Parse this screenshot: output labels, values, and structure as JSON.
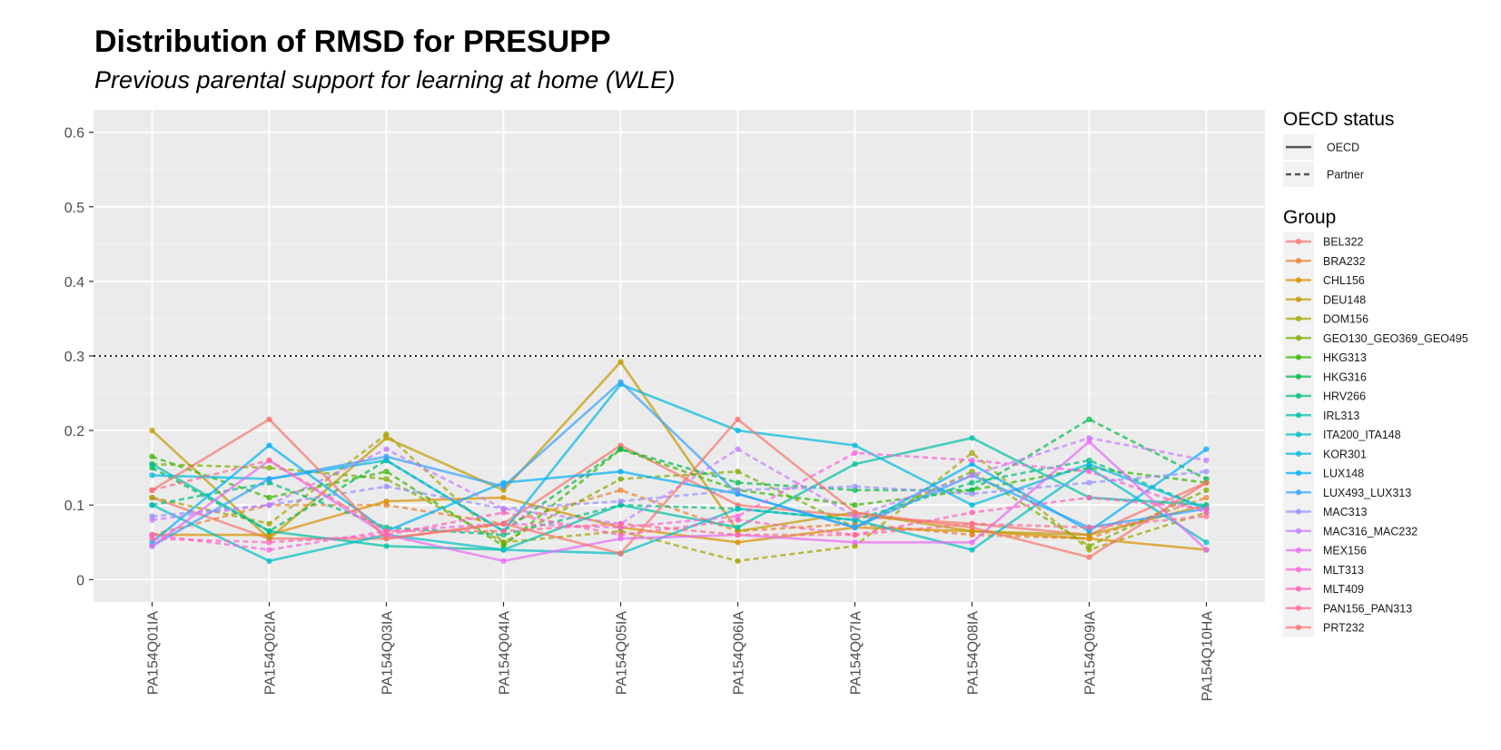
{
  "chart_data": {
    "type": "line",
    "title": "Distribution of RMSD for PRESUPP",
    "subtitle": "Previous parental support for learning at home (WLE)",
    "xlabel": "",
    "ylabel": "",
    "categories": [
      "PA154Q01IA",
      "PA154Q02IA",
      "PA154Q03IA",
      "PA154Q04IA",
      "PA154Q05IA",
      "PA154Q06IA",
      "PA154Q07IA",
      "PA154Q08IA",
      "PA154Q09IA",
      "PA154Q10HA"
    ],
    "ylim": [
      -0.03,
      0.63
    ],
    "yticks": [
      0,
      0.1,
      0.2,
      0.3,
      0.4,
      0.5,
      0.6
    ],
    "ytick_labels": [
      "0",
      "0.1",
      "0.2",
      "0.3",
      "0.4",
      "0.5",
      "0.6"
    ],
    "reference_line": {
      "y": 0.3,
      "style": "dotted",
      "color": "#000000"
    },
    "grid": true,
    "legend_placement": "right",
    "linetype_legend": {
      "title": "OECD status",
      "items": [
        {
          "label": "OECD",
          "dash": "solid"
        },
        {
          "label": "Partner",
          "dash": "dashed"
        }
      ]
    },
    "color_legend_title": "Group",
    "series": [
      {
        "name": "BEL322",
        "status": "OECD",
        "color": "#F8766D",
        "values": [
          0.11,
          0.055,
          0.055,
          0.075,
          0.18,
          0.1,
          0.085,
          0.075,
          0.06,
          0.13
        ]
      },
      {
        "name": "BRA232",
        "status": "Partner",
        "color": "#EA8331",
        "values": [
          0.06,
          0.1,
          0.1,
          0.075,
          0.12,
          0.065,
          0.075,
          0.06,
          0.055,
          0.11
        ]
      },
      {
        "name": "CHL156",
        "status": "OECD",
        "color": "#D89000",
        "values": [
          0.06,
          0.06,
          0.105,
          0.11,
          0.07,
          0.05,
          0.07,
          0.065,
          0.055,
          0.04
        ]
      },
      {
        "name": "DEU148",
        "status": "OECD",
        "color": "#C09B00",
        "values": [
          0.2,
          0.055,
          0.19,
          0.12,
          0.292,
          0.065,
          0.09,
          0.065,
          0.06,
          0.1
        ]
      },
      {
        "name": "DOM156",
        "status": "Partner",
        "color": "#A3A500",
        "values": [
          0.11,
          0.075,
          0.195,
          0.05,
          0.065,
          0.025,
          0.045,
          0.17,
          0.04,
          0.09
        ]
      },
      {
        "name": "GEO130_GEO369_GEO495",
        "status": "Partner",
        "color": "#7CAE00",
        "values": [
          0.155,
          0.15,
          0.135,
          0.05,
          0.135,
          0.145,
          0.07,
          0.145,
          0.045,
          0.12
        ]
      },
      {
        "name": "HKG313",
        "status": "Partner",
        "color": "#39B600",
        "values": [
          0.165,
          0.11,
          0.145,
          0.045,
          0.175,
          0.12,
          0.1,
          0.12,
          0.15,
          0.13
        ]
      },
      {
        "name": "HKG316",
        "status": "Partner",
        "color": "#00BB4E",
        "values": [
          0.15,
          0.065,
          0.16,
          0.065,
          0.175,
          0.13,
          0.12,
          0.12,
          0.215,
          0.135
        ]
      },
      {
        "name": "HRV266",
        "status": "Partner",
        "color": "#00BF7D",
        "values": [
          0.1,
          0.13,
          0.07,
          0.06,
          0.1,
          0.095,
          0.08,
          0.13,
          0.16,
          0.095
        ]
      },
      {
        "name": "IRL313",
        "status": "OECD",
        "color": "#00C1A3",
        "values": [
          0.155,
          0.065,
          0.045,
          0.04,
          0.1,
          0.07,
          0.155,
          0.19,
          0.11,
          0.1
        ]
      },
      {
        "name": "ITA200_ITA148",
        "status": "OECD",
        "color": "#00BFC4",
        "values": [
          0.1,
          0.025,
          0.06,
          0.04,
          0.035,
          0.095,
          0.08,
          0.04,
          0.15,
          0.05
        ]
      },
      {
        "name": "KOR301",
        "status": "OECD",
        "color": "#00BAE0",
        "values": [
          0.14,
          0.135,
          0.16,
          0.065,
          0.262,
          0.2,
          0.18,
          0.1,
          0.155,
          0.095
        ]
      },
      {
        "name": "LUX148",
        "status": "OECD",
        "color": "#00B0F6",
        "values": [
          0.05,
          0.18,
          0.065,
          0.13,
          0.145,
          0.115,
          0.07,
          0.155,
          0.065,
          0.175
        ]
      },
      {
        "name": "LUX493_LUX313",
        "status": "OECD",
        "color": "#35A2FF",
        "values": [
          0.045,
          0.135,
          0.165,
          0.125,
          0.265,
          0.115,
          0.07,
          0.14,
          0.07,
          0.095
        ]
      },
      {
        "name": "MAC313",
        "status": "Partner",
        "color": "#9590FF",
        "values": [
          0.085,
          0.1,
          0.125,
          0.095,
          0.105,
          0.12,
          0.125,
          0.115,
          0.13,
          0.145
        ]
      },
      {
        "name": "MAC316_MAC232",
        "status": "Partner",
        "color": "#C77CFF",
        "values": [
          0.08,
          0.1,
          0.175,
          0.095,
          0.075,
          0.175,
          0.085,
          0.14,
          0.19,
          0.16
        ]
      },
      {
        "name": "MEX156",
        "status": "OECD",
        "color": "#E76BF3",
        "values": [
          0.045,
          0.16,
          0.06,
          0.025,
          0.055,
          0.06,
          0.05,
          0.05,
          0.185,
          0.04
        ]
      },
      {
        "name": "MLT313",
        "status": "Partner",
        "color": "#FA62DB",
        "values": [
          0.06,
          0.04,
          0.065,
          0.075,
          0.07,
          0.085,
          0.17,
          0.16,
          0.145,
          0.09
        ]
      },
      {
        "name": "MLT409",
        "status": "Partner",
        "color": "#FF62BC",
        "values": [
          0.055,
          0.05,
          0.06,
          0.09,
          0.06,
          0.08,
          0.06,
          0.09,
          0.11,
          0.095
        ]
      },
      {
        "name": "PAN156_PAN313",
        "status": "Partner",
        "color": "#FF6C91",
        "values": [
          0.12,
          0.16,
          0.065,
          0.065,
          0.075,
          0.06,
          0.06,
          0.075,
          0.07,
          0.085
        ]
      },
      {
        "name": "PRT232",
        "status": "OECD",
        "color": "#F8766D",
        "values": [
          0.12,
          0.215,
          0.055,
          0.075,
          0.035,
          0.215,
          0.09,
          0.07,
          0.03,
          0.13
        ]
      }
    ]
  }
}
